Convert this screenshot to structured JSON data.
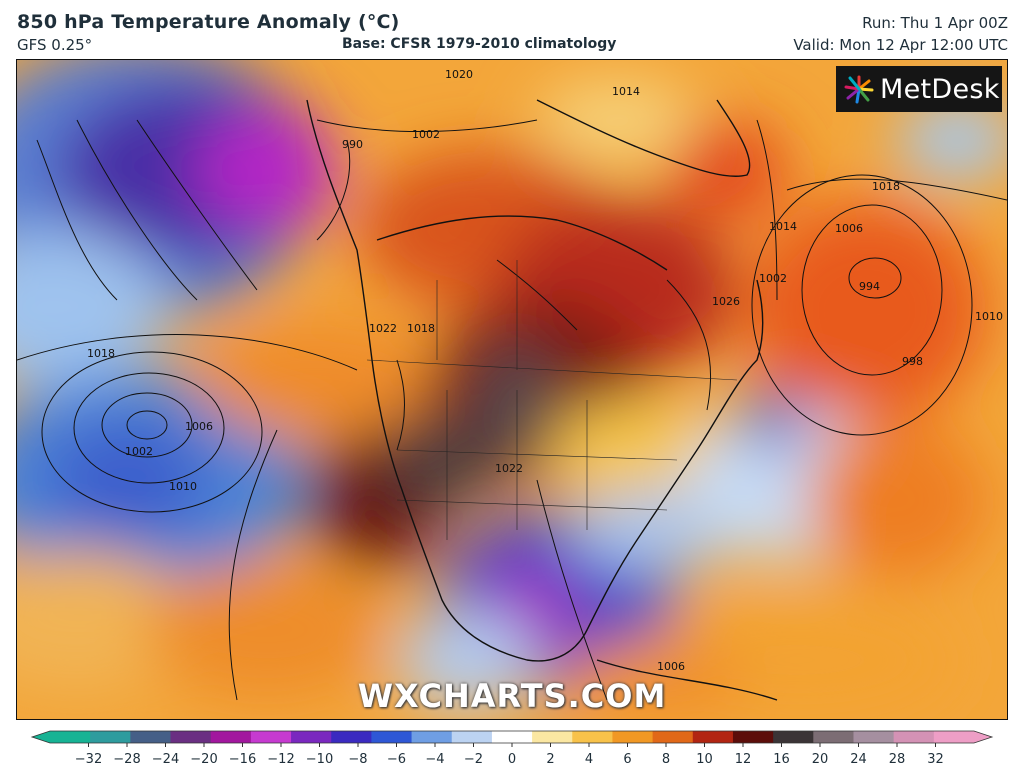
{
  "header": {
    "title": "850 hPa Temperature Anomaly (°C)",
    "model": "GFS 0.25°",
    "base": "Base: CFSR 1979-2010 climatology",
    "run": "Run: Thu 1 Apr 00Z",
    "valid": "Valid: Mon 12 Apr 12:00 UTC"
  },
  "logo": {
    "text": "MetDesk",
    "icon": "metdesk-star-icon"
  },
  "watermark": "WXCHARTS.COM",
  "isobar_labels": [
    "1020",
    "1002",
    "990",
    "1014",
    "1014",
    "1018",
    "1006",
    "994",
    "1010",
    "998",
    "1026",
    "1002",
    "1018",
    "1022",
    "1018",
    "1002",
    "1006",
    "1010",
    "1022",
    "1006"
  ],
  "colorbar": {
    "ticks": [
      "−32",
      "−28",
      "−24",
      "−20",
      "−16",
      "−12",
      "−10",
      "−8",
      "−6",
      "−4",
      "−2",
      "0",
      "2",
      "4",
      "6",
      "8",
      "10",
      "12",
      "16",
      "20",
      "24",
      "28",
      "32"
    ],
    "colors": [
      "#17b394",
      "#2e9c9e",
      "#455f87",
      "#6a2f82",
      "#a2179e",
      "#c63ad0",
      "#7a28bf",
      "#3a2ac0",
      "#2e57d6",
      "#6f9ee4",
      "#bcd3f2",
      "#ffffff",
      "#fbe7a2",
      "#f8c24a",
      "#f19824",
      "#e16818",
      "#b22512",
      "#5c0d0a",
      "#3b3436",
      "#7c6d74",
      "#a58fa0",
      "#d492b5",
      "#ee9ec6"
    ]
  }
}
